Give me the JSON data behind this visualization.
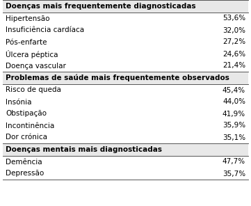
{
  "sections": [
    {
      "header": "Doenças mais frequentemente diagnosticadas",
      "rows": [
        [
          "Hipertensão",
          "53,6%"
        ],
        [
          "Insuficiência cardíaca",
          "32,0%"
        ],
        [
          "Pós-enfarte",
          "27,2%"
        ],
        [
          "Úlcera péptica",
          "24,6%"
        ],
        [
          "Doença vascular",
          "21,4%"
        ]
      ]
    },
    {
      "header": "Problemas de saúde mais frequentemente observados",
      "rows": [
        [
          "Risco de queda",
          "45,4%"
        ],
        [
          "Insónia",
          "44,0%"
        ],
        [
          "Obstipação",
          "41,9%"
        ],
        [
          "Incontinência",
          "35,9%"
        ],
        [
          "Dor crónica",
          "35,1%"
        ]
      ]
    },
    {
      "header": "Doenças mentais mais diagnosticadas",
      "rows": [
        [
          "Demência",
          "47,7%"
        ],
        [
          "Depressão",
          "35,7%"
        ]
      ]
    }
  ],
  "bg_color": "#ffffff",
  "header_bg": "#e8e8e8",
  "text_color": "#000000",
  "font_size": 7.5,
  "header_font_size": 7.5,
  "line_color": "#555555",
  "line_width": 0.7
}
